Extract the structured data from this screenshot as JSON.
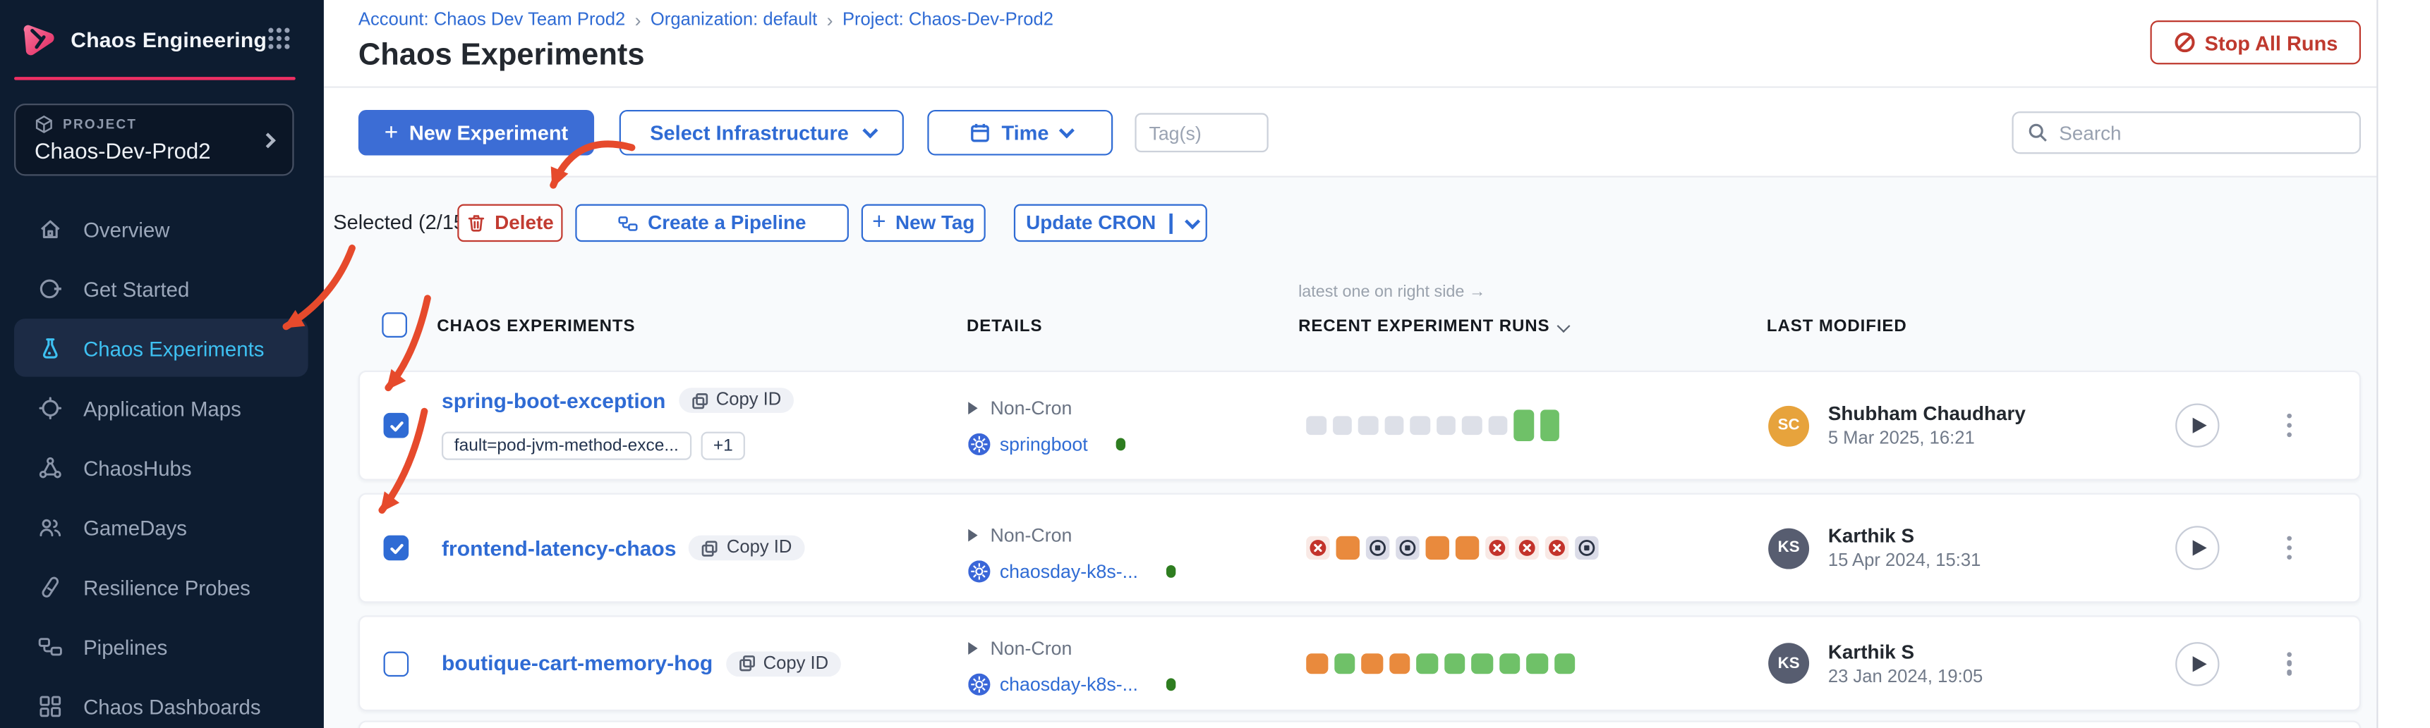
{
  "colors": {
    "accent_blue": "#2f6bd4",
    "primary_button_blue": "#3c6dd5",
    "sidebar_bg": "#0d1c30",
    "sidebar_selected_text": "#3ec1f2",
    "brand_pink": "#ee2f63",
    "danger_red": "#c23b31",
    "annotation_red": "#e64a2c",
    "run_green": "#6fc168",
    "run_orange": "#e98a3d",
    "run_pending_gray": "#dde0e8",
    "avatar_orange": "#e7a33c",
    "avatar_slate": "#575d70"
  },
  "sidebar": {
    "app_title": "Chaos Engineering",
    "project": {
      "label": "PROJECT",
      "name": "Chaos-Dev-Prod2"
    },
    "items": [
      {
        "label": "Overview",
        "selected": false
      },
      {
        "label": "Get Started",
        "selected": false
      },
      {
        "label": "Chaos Experiments",
        "selected": true
      },
      {
        "label": "Application Maps",
        "selected": false
      },
      {
        "label": "ChaosHubs",
        "selected": false
      },
      {
        "label": "GameDays",
        "selected": false
      },
      {
        "label": "Resilience Probes",
        "selected": false
      },
      {
        "label": "Pipelines",
        "selected": false
      },
      {
        "label": "Chaos Dashboards",
        "selected": false
      }
    ]
  },
  "header": {
    "breadcrumb": {
      "account": "Account: Chaos Dev Team Prod2",
      "separator": "›",
      "organization": "Organization: default",
      "project": "Project: Chaos-Dev-Prod2"
    },
    "title": "Chaos Experiments",
    "stop_all_runs": "Stop All Runs"
  },
  "toolbar": {
    "plus": "+",
    "new_experiment": "New Experiment",
    "select_infrastructure": "Select Infrastructure",
    "time": "Time",
    "tags_placeholder": "Tag(s)",
    "search_placeholder": "Search"
  },
  "selection_bar": {
    "selected": "Selected (2/15)",
    "delete": "Delete",
    "create_pipeline": "Create a Pipeline",
    "new_tag": "New Tag",
    "update_cron": "Update CRON"
  },
  "table": {
    "headers": {
      "experiments": "CHAOS EXPERIMENTS",
      "details": "DETAILS",
      "recent_runs": "RECENT EXPERIMENT RUNS",
      "last_modified": "LAST MODIFIED"
    },
    "runs_note": "latest one on right side →",
    "rows": [
      {
        "name": "spring-boot-exception",
        "copy_id": "Copy ID",
        "tags": [
          "fault=pod-jvm-method-exce...",
          "+1"
        ],
        "schedule": "Non-Cron",
        "infrastructure": "springboot",
        "checked": true,
        "runs": [
          "na",
          "na",
          "na",
          "na",
          "na",
          "na",
          "na",
          "na",
          "passed",
          "passed"
        ],
        "modified": {
          "initials": "SC",
          "name": "Shubham Chaudhary",
          "date": "5 Mar 2025, 16:21",
          "avatar_color": "#e7a33c"
        }
      },
      {
        "name": "frontend-latency-chaos",
        "copy_id": "Copy ID",
        "tags": [],
        "schedule": "Non-Cron",
        "infrastructure": "chaosday-k8s-...",
        "checked": true,
        "runs": [
          "failed",
          "running",
          "stopped",
          "stopped",
          "running",
          "running",
          "failed",
          "failed",
          "failed",
          "stopped"
        ],
        "modified": {
          "initials": "KS",
          "name": "Karthik S",
          "date": "15 Apr 2024, 15:31",
          "avatar_color": "#575d70"
        }
      },
      {
        "name": "boutique-cart-memory-hog",
        "copy_id": "Copy ID",
        "tags": [],
        "schedule": "Non-Cron",
        "infrastructure": "chaosday-k8s-...",
        "checked": false,
        "runs": [
          "running",
          "passed",
          "running",
          "running",
          "passed",
          "passed",
          "passed",
          "passed",
          "passed",
          "passed"
        ],
        "modified": {
          "initials": "KS",
          "name": "Karthik S",
          "date": "23 Jan 2024, 19:05",
          "avatar_color": "#575d70"
        }
      }
    ]
  }
}
